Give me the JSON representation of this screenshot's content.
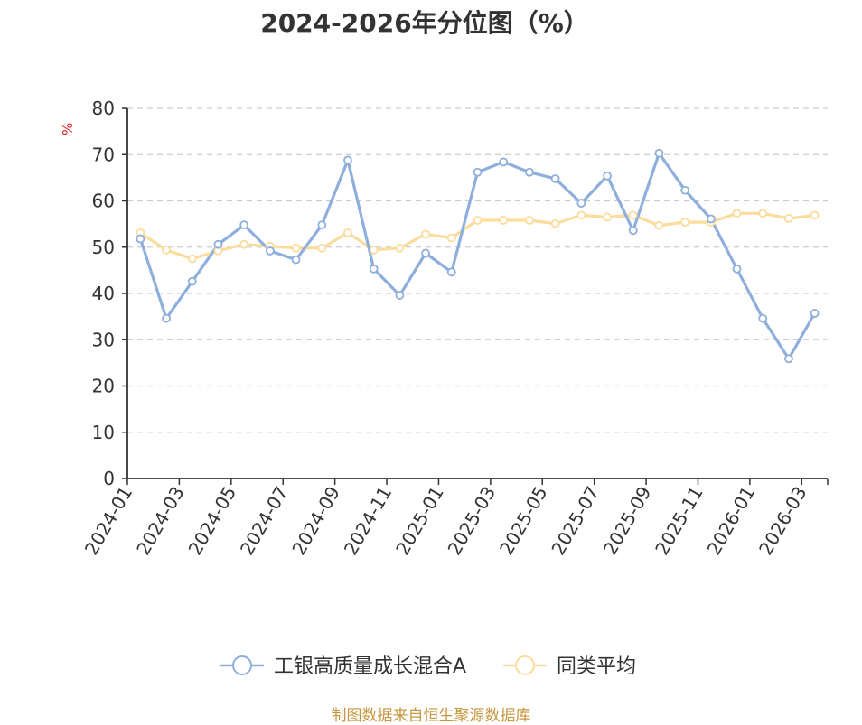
{
  "title": "2024-2026年分位图（%）",
  "source": "制图数据来自恒生聚源数据库",
  "colors": {
    "fund": "#8eaedc",
    "avg": "#fbdc9c",
    "axis": "#333333",
    "grid": "#cccccc"
  },
  "chart_data": {
    "type": "line",
    "title": "2024-2026年分位图（%）",
    "ylabel": "%",
    "ylim": [
      0,
      80
    ],
    "yticks": [
      0,
      10,
      20,
      30,
      40,
      50,
      60,
      70,
      80
    ],
    "grid": true,
    "legend_position": "bottom",
    "x": [
      "2024-01",
      "2024-02",
      "2024-03",
      "2024-04",
      "2024-05",
      "2024-06",
      "2024-07",
      "2024-08",
      "2024-09",
      "2024-10",
      "2024-11",
      "2024-12",
      "2025-01",
      "2025-02",
      "2025-03",
      "2025-04",
      "2025-05",
      "2025-06",
      "2025-07",
      "2025-08",
      "2025-09",
      "2025-10",
      "2025-11",
      "2025-12",
      "2026-01",
      "2026-02",
      "2026-03"
    ],
    "xtick_labels": [
      "2024-01",
      "2024-03",
      "2024-05",
      "2024-07",
      "2024-09",
      "2024-11",
      "2025-01",
      "2025-03",
      "2025-05",
      "2025-07",
      "2025-09",
      "2025-11",
      "2026-01",
      "2026-03"
    ],
    "series": [
      {
        "name": "工银高质量成长混合A",
        "values": [
          51.8,
          34.6,
          42.6,
          50.6,
          54.8,
          49.2,
          47.3,
          54.8,
          68.8,
          45.3,
          39.6,
          48.7,
          44.6,
          66.2,
          68.4,
          66.2,
          64.8,
          59.5,
          65.4,
          53.6,
          70.3,
          62.3,
          56.1,
          45.3,
          34.6,
          25.9,
          35.7
        ]
      },
      {
        "name": "同类平均",
        "values": [
          53.1,
          49.4,
          47.5,
          49.2,
          50.6,
          50.2,
          49.8,
          49.8,
          53.1,
          49.4,
          49.8,
          52.8,
          52.0,
          55.8,
          55.8,
          55.8,
          55.1,
          56.9,
          56.5,
          56.9,
          54.7,
          55.4,
          55.4,
          57.3,
          57.3,
          56.2,
          56.9
        ]
      }
    ]
  }
}
